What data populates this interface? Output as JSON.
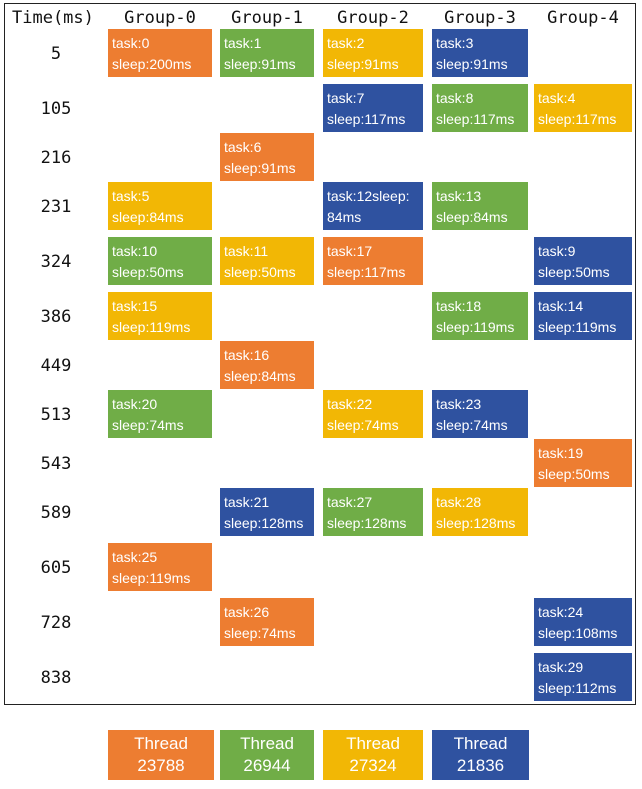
{
  "header": {
    "time_label": "Time(ms)",
    "groups": [
      "Group-0",
      "Group-1",
      "Group-2",
      "Group-3",
      "Group-4"
    ]
  },
  "colors": {
    "orange": "#ED7D31",
    "green": "#70AD47",
    "yellow": "#F2B705",
    "blue": "#2F52A0"
  },
  "rows": [
    "5",
    "105",
    "216",
    "231",
    "324",
    "386",
    "449",
    "513",
    "543",
    "589",
    "605",
    "728",
    "838"
  ],
  "tasks": [
    {
      "row": 0,
      "group": 0,
      "color": "orange",
      "task": "task:0",
      "sleep": "sleep:200ms"
    },
    {
      "row": 0,
      "group": 1,
      "color": "green",
      "task": "task:1",
      "sleep": "sleep:91ms"
    },
    {
      "row": 0,
      "group": 2,
      "color": "yellow",
      "task": "task:2",
      "sleep": "sleep:91ms"
    },
    {
      "row": 0,
      "group": 3,
      "color": "blue",
      "task": "task:3",
      "sleep": "sleep:91ms"
    },
    {
      "row": 1,
      "group": 2,
      "color": "blue",
      "task": "task:7",
      "sleep": "sleep:117ms"
    },
    {
      "row": 1,
      "group": 3,
      "color": "green",
      "task": "task:8",
      "sleep": "sleep:117ms"
    },
    {
      "row": 1,
      "group": 4,
      "color": "yellow",
      "task": "task:4",
      "sleep": "sleep:117ms"
    },
    {
      "row": 2,
      "group": 1,
      "color": "orange",
      "task": "task:6",
      "sleep": "sleep:91ms"
    },
    {
      "row": 3,
      "group": 0,
      "color": "yellow",
      "task": "task:5",
      "sleep": "sleep:84ms"
    },
    {
      "row": 3,
      "group": 2,
      "color": "blue",
      "task": "task:12sleep:",
      "sleep": "84ms"
    },
    {
      "row": 3,
      "group": 3,
      "color": "green",
      "task": "task:13",
      "sleep": "sleep:84ms"
    },
    {
      "row": 4,
      "group": 0,
      "color": "green",
      "task": "task:10",
      "sleep": "sleep:50ms"
    },
    {
      "row": 4,
      "group": 1,
      "color": "yellow",
      "task": "task:11",
      "sleep": "sleep:50ms"
    },
    {
      "row": 4,
      "group": 2,
      "color": "orange",
      "task": "task:17",
      "sleep": "sleep:117ms"
    },
    {
      "row": 4,
      "group": 4,
      "color": "blue",
      "task": "task:9",
      "sleep": "sleep:50ms"
    },
    {
      "row": 5,
      "group": 0,
      "color": "yellow",
      "task": "task:15",
      "sleep": "sleep:119ms"
    },
    {
      "row": 5,
      "group": 3,
      "color": "green",
      "task": "task:18",
      "sleep": "sleep:119ms"
    },
    {
      "row": 5,
      "group": 4,
      "color": "blue",
      "task": "task:14",
      "sleep": "sleep:119ms"
    },
    {
      "row": 6,
      "group": 1,
      "color": "orange",
      "task": "task:16",
      "sleep": "sleep:84ms"
    },
    {
      "row": 7,
      "group": 0,
      "color": "green",
      "task": "task:20",
      "sleep": "sleep:74ms"
    },
    {
      "row": 7,
      "group": 2,
      "color": "yellow",
      "task": "task:22",
      "sleep": "sleep:74ms"
    },
    {
      "row": 7,
      "group": 3,
      "color": "blue",
      "task": "task:23",
      "sleep": "sleep:74ms"
    },
    {
      "row": 8,
      "group": 4,
      "color": "orange",
      "task": "task:19",
      "sleep": "sleep:50ms"
    },
    {
      "row": 9,
      "group": 1,
      "color": "blue",
      "task": "task:21",
      "sleep": "sleep:128ms"
    },
    {
      "row": 9,
      "group": 2,
      "color": "green",
      "task": "task:27",
      "sleep": "sleep:128ms"
    },
    {
      "row": 9,
      "group": 3,
      "color": "yellow",
      "task": "task:28",
      "sleep": "sleep:128ms"
    },
    {
      "row": 10,
      "group": 0,
      "color": "orange",
      "task": "task:25",
      "sleep": "sleep:119ms"
    },
    {
      "row": 11,
      "group": 1,
      "color": "orange",
      "task": "task:26",
      "sleep": "sleep:74ms"
    },
    {
      "row": 11,
      "group": 4,
      "color": "blue",
      "task": "task:24",
      "sleep": "sleep:108ms"
    },
    {
      "row": 12,
      "group": 4,
      "color": "blue",
      "task": "task:29",
      "sleep": "sleep:112ms"
    }
  ],
  "legend": [
    {
      "color": "orange",
      "line1": "Thread",
      "line2": "23788"
    },
    {
      "color": "green",
      "line1": "Thread",
      "line2": "26944"
    },
    {
      "color": "yellow",
      "line1": "Thread",
      "line2": "27324"
    },
    {
      "color": "blue",
      "line1": "Thread",
      "line2": "21836"
    }
  ]
}
